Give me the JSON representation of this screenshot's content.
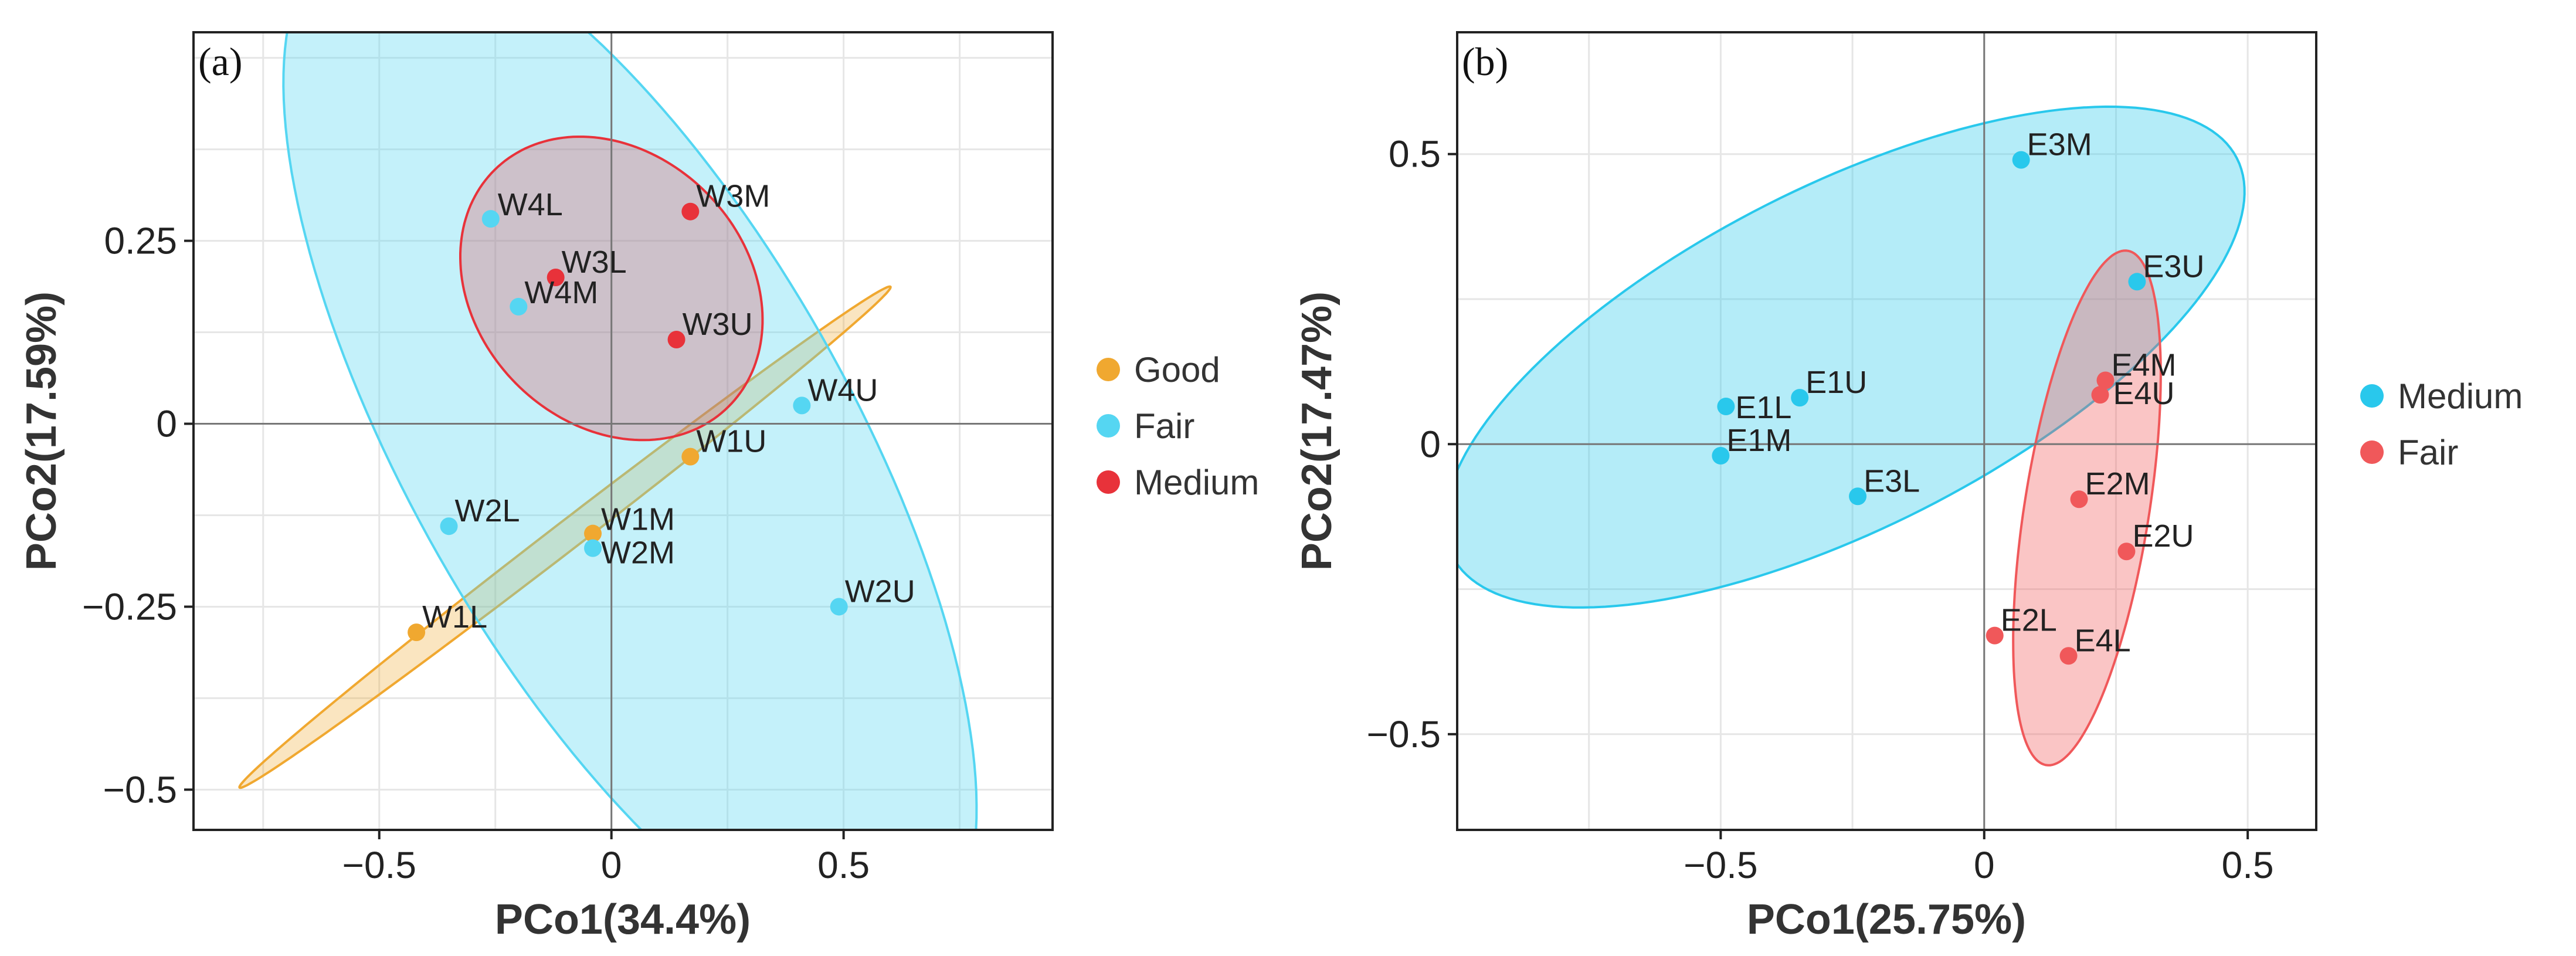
{
  "chart_data": [
    {
      "type": "scatter",
      "panel_label": "(a)",
      "xlabel": "PCo1(34.4%)",
      "ylabel": "PCo2(17.59%)",
      "xlim": [
        -0.9,
        0.95
      ],
      "ylim": [
        -0.555,
        0.535
      ],
      "xticks": [
        -0.5,
        0,
        0.5
      ],
      "xtick_labels": [
        "−0.5",
        "0",
        "0.5"
      ],
      "yticks": [
        -0.5,
        -0.25,
        0,
        0.25
      ],
      "ytick_labels": [
        "−0.5",
        "−0.25",
        "0",
        "0.25"
      ],
      "grid": true,
      "legend_position": "right",
      "groups": [
        {
          "name": "Good",
          "color": "#f0a830",
          "ellipse": {
            "center": [
              -0.1,
              -0.155
            ],
            "semi_axes": [
              0.78,
              0.022
            ],
            "angle_deg": 26,
            "fill_opacity": 0.3
          }
        },
        {
          "name": "Fair",
          "color": "#55d6f2",
          "ellipse": {
            "center": [
              0.04,
              -0.03
            ],
            "semi_axes": [
              0.95,
              0.4
            ],
            "angle_deg": -43,
            "fill_opacity": 0.35
          }
        },
        {
          "name": "Medium",
          "color": "#e8323a",
          "ellipse": {
            "center": [
              0.0,
              0.185
            ],
            "semi_axes": [
              0.33,
              0.2
            ],
            "angle_deg": -12,
            "fill_opacity": 0.25
          }
        }
      ],
      "points": [
        {
          "label": "W4L",
          "x": -0.26,
          "y": 0.28,
          "group": "Fair"
        },
        {
          "label": "W3M",
          "x": 0.17,
          "y": 0.29,
          "group": "Medium"
        },
        {
          "label": "W3L",
          "x": -0.12,
          "y": 0.2,
          "group": "Medium"
        },
        {
          "label": "W4M",
          "x": -0.2,
          "y": 0.16,
          "group": "Fair"
        },
        {
          "label": "W3U",
          "x": 0.14,
          "y": 0.115,
          "group": "Medium"
        },
        {
          "label": "W4U",
          "x": 0.41,
          "y": 0.025,
          "group": "Fair"
        },
        {
          "label": "W1U",
          "x": 0.17,
          "y": -0.045,
          "group": "Good"
        },
        {
          "label": "W2L",
          "x": -0.35,
          "y": -0.14,
          "group": "Fair"
        },
        {
          "label": "W1M",
          "x": -0.04,
          "y": -0.15,
          "group": "Good"
        },
        {
          "label": "W2M",
          "x": -0.04,
          "y": -0.17,
          "group": "Fair"
        },
        {
          "label": "W2U",
          "x": 0.49,
          "y": -0.25,
          "group": "Fair"
        },
        {
          "label": "W1L",
          "x": -0.42,
          "y": -0.285,
          "group": "Good"
        }
      ]
    },
    {
      "type": "scatter",
      "panel_label": "(b)",
      "xlabel": "PCo1(25.75%)",
      "ylabel": "PCo2(17.47%)",
      "xlim": [
        -1.0,
        0.63
      ],
      "ylim": [
        -0.665,
        0.71
      ],
      "xticks": [
        -0.5,
        0,
        0.5
      ],
      "xtick_labels": [
        "−0.5",
        "0",
        "0.5"
      ],
      "yticks": [
        -0.5,
        0,
        0.5
      ],
      "ytick_labels": [
        "−0.5",
        "0",
        "0.5"
      ],
      "grid": true,
      "legend_position": "right",
      "groups": [
        {
          "name": "Medium",
          "color": "#29c8ec",
          "ellipse": {
            "center": [
              -0.265,
              0.15
            ],
            "semi_axes": [
              0.82,
              0.3
            ],
            "angle_deg": 24,
            "fill_opacity": 0.35
          }
        },
        {
          "name": "Fair",
          "color": "#f0585a",
          "ellipse": {
            "center": [
              0.195,
              -0.11
            ],
            "semi_axes": [
              0.45,
              0.118
            ],
            "angle_deg": 80,
            "fill_opacity": 0.35
          }
        }
      ],
      "points": [
        {
          "label": "E3M",
          "x": 0.07,
          "y": 0.49,
          "group": "Medium"
        },
        {
          "label": "E3U",
          "x": 0.29,
          "y": 0.28,
          "group": "Medium"
        },
        {
          "label": "E4M",
          "x": 0.23,
          "y": 0.11,
          "group": "Fair"
        },
        {
          "label": "E4U",
          "x": 0.22,
          "y": 0.085,
          "group": "Fair"
        },
        {
          "label": "E1L",
          "x": -0.49,
          "y": 0.065,
          "group": "Medium"
        },
        {
          "label": "E1U",
          "x": -0.35,
          "y": 0.08,
          "group": "Medium"
        },
        {
          "label": "E1M",
          "x": -0.5,
          "y": -0.02,
          "group": "Medium"
        },
        {
          "label": "E3L",
          "x": -0.24,
          "y": -0.09,
          "group": "Medium"
        },
        {
          "label": "E2M",
          "x": 0.18,
          "y": -0.095,
          "group": "Fair"
        },
        {
          "label": "E2U",
          "x": 0.27,
          "y": -0.185,
          "group": "Fair"
        },
        {
          "label": "E2L",
          "x": 0.02,
          "y": -0.33,
          "group": "Fair"
        },
        {
          "label": "E4L",
          "x": 0.16,
          "y": -0.365,
          "group": "Fair"
        }
      ]
    }
  ]
}
